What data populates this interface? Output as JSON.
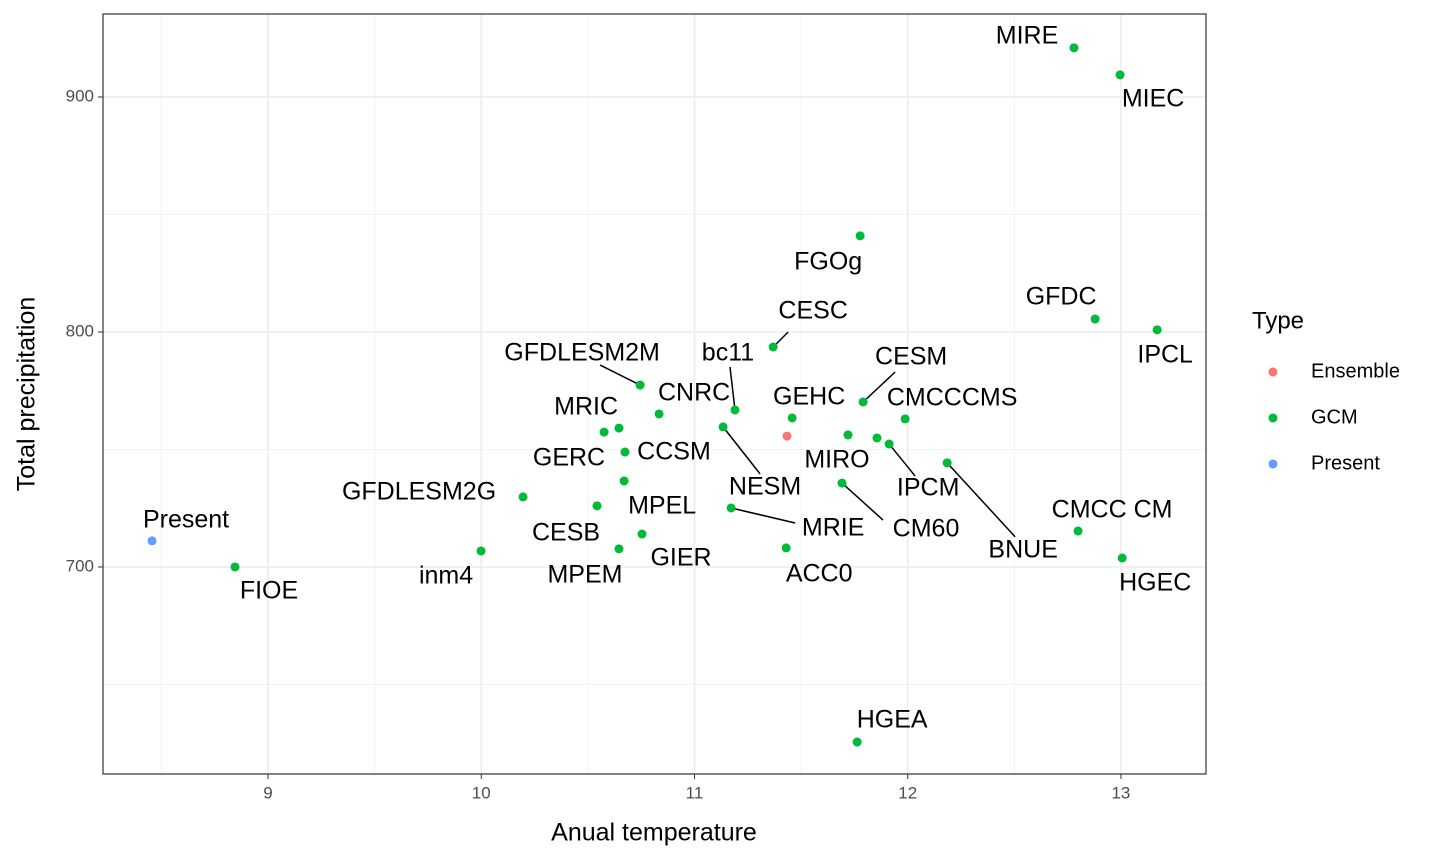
{
  "chart_data": {
    "type": "scatter",
    "x_label": "Anual temperature",
    "y_label": "Total precipitation",
    "legend_title": "Type",
    "xlim": [
      8.226,
      13.399
    ],
    "ylim": [
      611.9,
      935.3
    ],
    "xticks": [
      9,
      10,
      11,
      12,
      13
    ],
    "yticks": [
      700,
      800,
      900
    ],
    "xminor": [
      8.5,
      9.5,
      10.5,
      11.5,
      12.5
    ],
    "yminor": [
      650,
      750,
      850
    ],
    "grid": true,
    "legend": "right",
    "series": [
      {
        "name": "Ensemble",
        "color": "#F8766D",
        "x": [
          11.434
        ],
        "values": [
          755.7
        ]
      },
      {
        "name": "GCM",
        "color": "#00BA38",
        "x": [
          8.845,
          9.999,
          10.196,
          10.543,
          10.646,
          10.754,
          10.67,
          10.576,
          10.646,
          10.674,
          10.745,
          10.834,
          11.19,
          11.134,
          11.172,
          11.43,
          11.369,
          11.458,
          11.777,
          11.791,
          11.988,
          11.72,
          11.856,
          11.913,
          11.692,
          12.185,
          12.799,
          13.006,
          12.78,
          12.996,
          12.879,
          13.17,
          11.763
        ],
        "values": [
          700,
          706.8,
          729.8,
          726,
          707.7,
          714,
          736.6,
          757.4,
          759.1,
          748.9,
          777.4,
          765.1,
          766.8,
          759.6,
          725.1,
          708.1,
          793.6,
          763.4,
          840.9,
          770.2,
          763,
          756.2,
          754.9,
          752.3,
          735.7,
          744.3,
          715.3,
          703.8,
          920.9,
          909.4,
          805.5,
          800.9,
          625.5
        ],
        "labels": [
          "FIOE",
          "inm4",
          "GFDLESM2G",
          "CESB",
          "MPEM",
          "GIER",
          "MPEL",
          "MRIC",
          "GERC",
          "CCSM",
          "GFDLESM2M",
          "CNRC",
          "bc11",
          "NESM",
          "MRIE",
          "ACC0",
          "CESC",
          "GEHC",
          "FGOg",
          "CESM",
          "CMCCCMS",
          "MIRO",
          null,
          "IPCM",
          "CM60",
          "BNUE",
          "CMCC CM",
          "HGEC",
          "MIRE",
          "MIEC",
          "GFDC",
          "IPCL",
          "HGEA"
        ]
      },
      {
        "name": "Present",
        "color": "#619CFF",
        "x": [
          8.456
        ],
        "values": [
          711.1
        ],
        "labels": [
          "Present"
        ]
      }
    ]
  }
}
